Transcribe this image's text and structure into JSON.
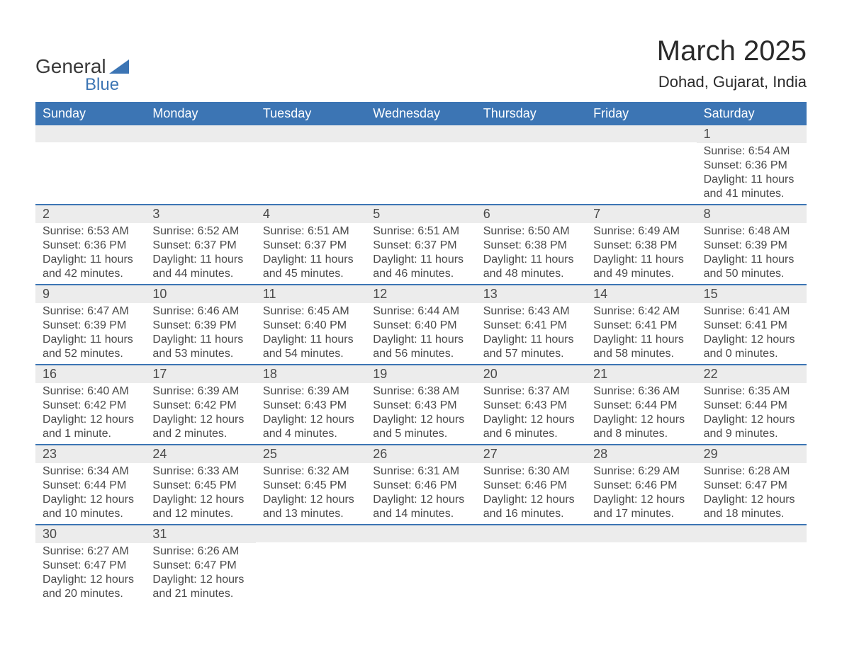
{
  "logo": {
    "word1": "General",
    "word2": "Blue",
    "accent_color": "#3c75b4"
  },
  "title": "March 2025",
  "subtitle": "Dohad, Gujarat, India",
  "colors": {
    "header_bg": "#3c75b4",
    "header_text": "#ffffff",
    "daynum_bg": "#ececec",
    "text": "#4a4a4a",
    "row_border": "#3c75b4",
    "page_bg": "#ffffff"
  },
  "fonts": {
    "title_size": 40,
    "subtitle_size": 22,
    "header_size": 18,
    "daynum_size": 18,
    "detail_size": 16
  },
  "day_names": [
    "Sunday",
    "Monday",
    "Tuesday",
    "Wednesday",
    "Thursday",
    "Friday",
    "Saturday"
  ],
  "weeks": [
    [
      {
        "n": "",
        "sr": "",
        "ss": "",
        "dl": ""
      },
      {
        "n": "",
        "sr": "",
        "ss": "",
        "dl": ""
      },
      {
        "n": "",
        "sr": "",
        "ss": "",
        "dl": ""
      },
      {
        "n": "",
        "sr": "",
        "ss": "",
        "dl": ""
      },
      {
        "n": "",
        "sr": "",
        "ss": "",
        "dl": ""
      },
      {
        "n": "",
        "sr": "",
        "ss": "",
        "dl": ""
      },
      {
        "n": "1",
        "sr": "Sunrise: 6:54 AM",
        "ss": "Sunset: 6:36 PM",
        "dl": "Daylight: 11 hours and 41 minutes."
      }
    ],
    [
      {
        "n": "2",
        "sr": "Sunrise: 6:53 AM",
        "ss": "Sunset: 6:36 PM",
        "dl": "Daylight: 11 hours and 42 minutes."
      },
      {
        "n": "3",
        "sr": "Sunrise: 6:52 AM",
        "ss": "Sunset: 6:37 PM",
        "dl": "Daylight: 11 hours and 44 minutes."
      },
      {
        "n": "4",
        "sr": "Sunrise: 6:51 AM",
        "ss": "Sunset: 6:37 PM",
        "dl": "Daylight: 11 hours and 45 minutes."
      },
      {
        "n": "5",
        "sr": "Sunrise: 6:51 AM",
        "ss": "Sunset: 6:37 PM",
        "dl": "Daylight: 11 hours and 46 minutes."
      },
      {
        "n": "6",
        "sr": "Sunrise: 6:50 AM",
        "ss": "Sunset: 6:38 PM",
        "dl": "Daylight: 11 hours and 48 minutes."
      },
      {
        "n": "7",
        "sr": "Sunrise: 6:49 AM",
        "ss": "Sunset: 6:38 PM",
        "dl": "Daylight: 11 hours and 49 minutes."
      },
      {
        "n": "8",
        "sr": "Sunrise: 6:48 AM",
        "ss": "Sunset: 6:39 PM",
        "dl": "Daylight: 11 hours and 50 minutes."
      }
    ],
    [
      {
        "n": "9",
        "sr": "Sunrise: 6:47 AM",
        "ss": "Sunset: 6:39 PM",
        "dl": "Daylight: 11 hours and 52 minutes."
      },
      {
        "n": "10",
        "sr": "Sunrise: 6:46 AM",
        "ss": "Sunset: 6:39 PM",
        "dl": "Daylight: 11 hours and 53 minutes."
      },
      {
        "n": "11",
        "sr": "Sunrise: 6:45 AM",
        "ss": "Sunset: 6:40 PM",
        "dl": "Daylight: 11 hours and 54 minutes."
      },
      {
        "n": "12",
        "sr": "Sunrise: 6:44 AM",
        "ss": "Sunset: 6:40 PM",
        "dl": "Daylight: 11 hours and 56 minutes."
      },
      {
        "n": "13",
        "sr": "Sunrise: 6:43 AM",
        "ss": "Sunset: 6:41 PM",
        "dl": "Daylight: 11 hours and 57 minutes."
      },
      {
        "n": "14",
        "sr": "Sunrise: 6:42 AM",
        "ss": "Sunset: 6:41 PM",
        "dl": "Daylight: 11 hours and 58 minutes."
      },
      {
        "n": "15",
        "sr": "Sunrise: 6:41 AM",
        "ss": "Sunset: 6:41 PM",
        "dl": "Daylight: 12 hours and 0 minutes."
      }
    ],
    [
      {
        "n": "16",
        "sr": "Sunrise: 6:40 AM",
        "ss": "Sunset: 6:42 PM",
        "dl": "Daylight: 12 hours and 1 minute."
      },
      {
        "n": "17",
        "sr": "Sunrise: 6:39 AM",
        "ss": "Sunset: 6:42 PM",
        "dl": "Daylight: 12 hours and 2 minutes."
      },
      {
        "n": "18",
        "sr": "Sunrise: 6:39 AM",
        "ss": "Sunset: 6:43 PM",
        "dl": "Daylight: 12 hours and 4 minutes."
      },
      {
        "n": "19",
        "sr": "Sunrise: 6:38 AM",
        "ss": "Sunset: 6:43 PM",
        "dl": "Daylight: 12 hours and 5 minutes."
      },
      {
        "n": "20",
        "sr": "Sunrise: 6:37 AM",
        "ss": "Sunset: 6:43 PM",
        "dl": "Daylight: 12 hours and 6 minutes."
      },
      {
        "n": "21",
        "sr": "Sunrise: 6:36 AM",
        "ss": "Sunset: 6:44 PM",
        "dl": "Daylight: 12 hours and 8 minutes."
      },
      {
        "n": "22",
        "sr": "Sunrise: 6:35 AM",
        "ss": "Sunset: 6:44 PM",
        "dl": "Daylight: 12 hours and 9 minutes."
      }
    ],
    [
      {
        "n": "23",
        "sr": "Sunrise: 6:34 AM",
        "ss": "Sunset: 6:44 PM",
        "dl": "Daylight: 12 hours and 10 minutes."
      },
      {
        "n": "24",
        "sr": "Sunrise: 6:33 AM",
        "ss": "Sunset: 6:45 PM",
        "dl": "Daylight: 12 hours and 12 minutes."
      },
      {
        "n": "25",
        "sr": "Sunrise: 6:32 AM",
        "ss": "Sunset: 6:45 PM",
        "dl": "Daylight: 12 hours and 13 minutes."
      },
      {
        "n": "26",
        "sr": "Sunrise: 6:31 AM",
        "ss": "Sunset: 6:46 PM",
        "dl": "Daylight: 12 hours and 14 minutes."
      },
      {
        "n": "27",
        "sr": "Sunrise: 6:30 AM",
        "ss": "Sunset: 6:46 PM",
        "dl": "Daylight: 12 hours and 16 minutes."
      },
      {
        "n": "28",
        "sr": "Sunrise: 6:29 AM",
        "ss": "Sunset: 6:46 PM",
        "dl": "Daylight: 12 hours and 17 minutes."
      },
      {
        "n": "29",
        "sr": "Sunrise: 6:28 AM",
        "ss": "Sunset: 6:47 PM",
        "dl": "Daylight: 12 hours and 18 minutes."
      }
    ],
    [
      {
        "n": "30",
        "sr": "Sunrise: 6:27 AM",
        "ss": "Sunset: 6:47 PM",
        "dl": "Daylight: 12 hours and 20 minutes."
      },
      {
        "n": "31",
        "sr": "Sunrise: 6:26 AM",
        "ss": "Sunset: 6:47 PM",
        "dl": "Daylight: 12 hours and 21 minutes."
      },
      {
        "n": "",
        "sr": "",
        "ss": "",
        "dl": ""
      },
      {
        "n": "",
        "sr": "",
        "ss": "",
        "dl": ""
      },
      {
        "n": "",
        "sr": "",
        "ss": "",
        "dl": ""
      },
      {
        "n": "",
        "sr": "",
        "ss": "",
        "dl": ""
      },
      {
        "n": "",
        "sr": "",
        "ss": "",
        "dl": ""
      }
    ]
  ]
}
